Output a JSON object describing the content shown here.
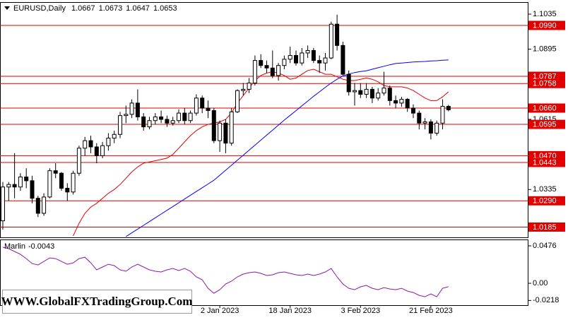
{
  "chart_data": {
    "type": "candlestick",
    "title": "EURUSD,Daily",
    "categories": [
      null,
      null,
      null,
      null,
      null,
      null,
      null,
      null,
      null,
      null,
      null,
      null,
      null,
      null,
      null,
      null,
      null,
      null,
      null,
      null,
      null,
      null,
      null,
      null,
      null,
      null,
      null,
      null,
      null,
      null,
      null,
      null,
      null,
      null,
      null,
      null,
      null,
      "2 Jan 2023",
      null,
      null,
      null,
      null,
      null,
      null,
      null,
      null,
      null,
      null,
      null,
      "18 Jan 2023",
      null,
      null,
      null,
      null,
      null,
      null,
      null,
      null,
      null,
      null,
      null,
      "3 Feb 2023",
      null,
      null,
      null,
      null,
      null,
      null,
      null,
      null,
      null,
      null,
      null,
      "21 Feb 2023",
      null,
      null,
      null
    ],
    "open": [
      1.021,
      1.0345,
      1.0355,
      1.0345,
      1.0385,
      1.037,
      1.03,
      1.024,
      1.0305,
      1.041,
      1.04,
      1.034,
      1.0325,
      1.04,
      1.05,
      1.053,
      1.0505,
      1.047,
      1.051,
      1.054,
      1.0555,
      1.063,
      1.0635,
      1.068,
      1.0625,
      1.0585,
      1.061,
      1.0625,
      1.0615,
      1.06,
      1.061,
      1.064,
      1.061,
      1.064,
      1.07,
      1.066,
      1.065,
      1.053,
      1.06,
      1.052,
      1.0645,
      1.073,
      1.0735,
      1.076,
      1.085,
      1.083,
      1.082,
      1.079,
      1.083,
      1.0855,
      1.087,
      1.084,
      1.088,
      1.089,
      1.085,
      1.084,
      1.086,
      1.0995,
      1.091,
      1.0795,
      1.0725,
      1.073,
      1.0715,
      1.0735,
      1.07,
      1.072,
      1.074,
      1.069,
      1.068,
      1.0695,
      1.066,
      1.064,
      1.06,
      1.0605,
      1.056,
      1.06,
      1.0667
    ],
    "high": [
      1.0365,
      1.0365,
      1.048,
      1.04,
      1.042,
      1.039,
      1.031,
      1.032,
      1.042,
      1.044,
      1.0405,
      1.036,
      1.041,
      1.051,
      1.0545,
      1.055,
      1.052,
      1.0525,
      1.056,
      1.057,
      1.0645,
      1.067,
      1.0695,
      1.0735,
      1.064,
      1.0625,
      1.064,
      1.065,
      1.063,
      1.0625,
      1.0655,
      1.066,
      1.065,
      1.0715,
      1.071,
      1.069,
      1.066,
      1.061,
      1.0615,
      1.066,
      1.0735,
      1.076,
      1.078,
      1.087,
      1.0875,
      1.085,
      1.089,
      1.084,
      1.087,
      1.0905,
      1.089,
      1.09,
      1.091,
      1.09,
      1.087,
      1.088,
      1.1005,
      1.1033,
      1.0925,
      1.081,
      1.076,
      1.076,
      1.076,
      1.0745,
      1.074,
      1.0805,
      1.075,
      1.071,
      1.0705,
      1.07,
      1.0675,
      1.065,
      1.062,
      1.0615,
      1.061,
      1.0695,
      1.0673
    ],
    "low": [
      1.0175,
      1.029,
      1.03,
      1.033,
      1.034,
      1.028,
      1.0225,
      1.023,
      1.03,
      1.038,
      1.033,
      1.029,
      1.0315,
      1.039,
      1.047,
      1.048,
      1.044,
      1.046,
      1.049,
      1.052,
      1.054,
      1.06,
      1.062,
      1.061,
      1.057,
      1.0575,
      1.0595,
      1.06,
      1.0585,
      1.059,
      1.06,
      1.0595,
      1.06,
      1.063,
      1.064,
      1.062,
      1.052,
      1.0485,
      1.048,
      1.051,
      1.064,
      1.071,
      1.072,
      1.075,
      1.082,
      1.08,
      1.078,
      1.077,
      1.0815,
      1.084,
      1.083,
      1.083,
      1.086,
      1.084,
      1.08,
      1.081,
      1.0855,
      1.089,
      1.079,
      1.071,
      1.067,
      1.07,
      1.07,
      1.068,
      1.069,
      1.071,
      1.067,
      1.066,
      1.0665,
      1.0645,
      1.062,
      1.0575,
      1.0575,
      1.0535,
      1.055,
      1.0575,
      1.0647
    ],
    "close": [
      1.0345,
      1.0355,
      1.0345,
      1.0385,
      1.037,
      1.03,
      1.024,
      1.0305,
      1.041,
      1.04,
      1.034,
      1.0325,
      1.04,
      1.05,
      1.053,
      1.0505,
      1.047,
      1.051,
      1.054,
      1.0555,
      1.063,
      1.0635,
      1.068,
      1.0625,
      1.0585,
      1.061,
      1.0625,
      1.0615,
      1.06,
      1.061,
      1.064,
      1.061,
      1.064,
      1.07,
      1.066,
      1.065,
      1.053,
      1.06,
      1.052,
      1.0645,
      1.073,
      1.0735,
      1.076,
      1.085,
      1.083,
      1.082,
      1.079,
      1.083,
      1.0855,
      1.087,
      1.084,
      1.088,
      1.089,
      1.085,
      1.084,
      1.086,
      1.0995,
      1.091,
      1.0795,
      1.0725,
      1.073,
      1.0715,
      1.0735,
      1.07,
      1.072,
      1.074,
      1.069,
      1.068,
      1.0695,
      1.066,
      1.064,
      1.06,
      1.0605,
      1.056,
      1.06,
      1.0667,
      1.0653
    ],
    "up_color": "#ffffff",
    "down_color": "#000000",
    "overlays": [
      {
        "color": "#e00000",
        "values": [
          null,
          null,
          null,
          null,
          null,
          null,
          null,
          null,
          null,
          null,
          null,
          null,
          1.015,
          1.02,
          1.024,
          1.0265,
          1.028,
          1.03,
          1.032,
          1.0335,
          1.0355,
          1.038,
          1.0405,
          1.0425,
          1.044,
          1.0445,
          1.045,
          1.0455,
          1.046,
          1.0475,
          1.05,
          1.0525,
          1.055,
          1.057,
          1.0585,
          1.0595,
          1.06,
          1.0605,
          1.0615,
          1.064,
          1.068,
          1.071,
          1.074,
          1.077,
          1.079,
          1.08,
          1.0805,
          1.08,
          1.079,
          1.0775,
          1.078,
          1.0795,
          1.081,
          1.0815,
          1.0805,
          1.0795,
          1.0795,
          1.0785,
          1.0775,
          1.077,
          1.077,
          1.0775,
          1.078,
          1.0775,
          1.0765,
          1.075,
          1.0745,
          1.0745,
          1.0745,
          1.074,
          1.073,
          1.0715,
          1.07,
          1.069,
          1.069,
          1.0705,
          1.0725
        ]
      },
      {
        "color": "#0000ff",
        "values": [
          null,
          null,
          null,
          null,
          null,
          null,
          null,
          null,
          null,
          null,
          null,
          null,
          null,
          null,
          null,
          null,
          null,
          null,
          null,
          null,
          null,
          1.0147,
          1.0162,
          1.0177,
          1.0192,
          1.0207,
          1.0222,
          1.0237,
          1.0252,
          1.0267,
          1.0282,
          1.0297,
          1.0312,
          1.0327,
          1.0342,
          1.0357,
          1.0372,
          1.0392,
          1.0412,
          1.0432,
          1.0452,
          1.0472,
          1.0492,
          1.0512,
          1.0532,
          1.0552,
          1.0572,
          1.0592,
          1.0612,
          1.0631,
          1.065,
          1.0669,
          1.0688,
          1.0707,
          1.0725,
          1.0743,
          1.076,
          1.0775,
          1.0788,
          1.0796,
          1.0802,
          1.0806,
          1.0809,
          1.0815,
          1.0821,
          1.0827,
          1.0833,
          1.0838,
          1.084,
          1.0842,
          1.0844,
          1.0845,
          1.0846,
          1.0848,
          1.0849,
          1.0851,
          1.0852
        ]
      }
    ],
    "levels": [
      {
        "value": 1.099,
        "label": "1.0990"
      },
      1.0787,
      1.0758,
      {
        "value": 1.066,
        "label": "1.0660"
      },
      1.0595,
      {
        "value": 1.047,
        "label": "1.0470"
      },
      1.0443,
      {
        "value": 1.029,
        "label": "1.0290"
      },
      1.0185
    ],
    "level_color": "#e00000",
    "ylim": [
      1.0144,
      1.1083
    ],
    "yticks": [
      1.1035,
      1.0895,
      1.0615,
      1.0335
    ],
    "indicator": {
      "name": "Marlin",
      "color": "#8a1aa8",
      "values": [
        0.0458,
        0.044,
        0.0404,
        0.0368,
        0.0314,
        0.0251,
        0.0233,
        0.0278,
        0.0323,
        0.0314,
        0.0278,
        0.0242,
        0.026,
        0.0314,
        0.0332,
        0.026,
        0.0171,
        0.0207,
        0.0242,
        0.0225,
        0.0171,
        0.0153,
        0.0207,
        0.0242,
        0.0207,
        0.0171,
        0.0153,
        0.0144,
        0.0171,
        0.0189,
        0.0162,
        0.0189,
        0.0153,
        0.0081,
        0.0045,
        -0.0063,
        -0.0126,
        -0.0081,
        -0.0009,
        0.0027,
        0.0081,
        0.0117,
        0.0135,
        0.0144,
        0.0126,
        0.0099,
        0.0108,
        0.0135,
        0.0144,
        0.0126,
        0.0108,
        0.0099,
        0.0117,
        0.0099,
        0.0117,
        0.0144,
        0.0189,
        0.0081,
        -0.0009,
        -0.0063,
        -0.0081,
        -0.0045,
        -0.0027,
        -0.0063,
        -0.0081,
        -0.0054,
        -0.0072,
        -0.0081,
        -0.0063,
        -0.0099,
        -0.0117,
        -0.0153,
        -0.0171,
        -0.0135,
        -0.0171,
        -0.0063,
        -0.0043
      ],
      "ylim": [
        -0.0278,
        0.0557
      ],
      "yticks": [
        0.0476,
        {
          "value": 0,
          "label": "0.00"
        },
        -0.0218
      ]
    },
    "watermark": "WWW.GlobalFXTradingGroup.Com"
  }
}
